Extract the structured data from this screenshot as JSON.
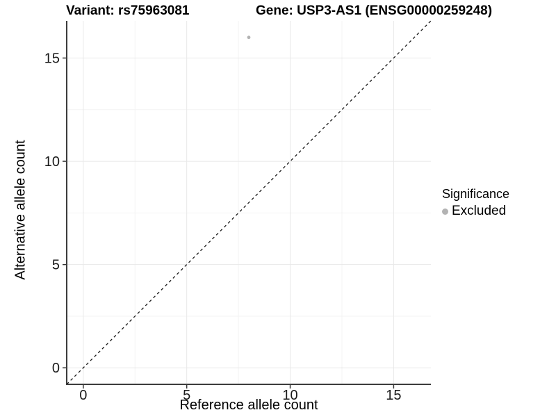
{
  "chart_data": {
    "type": "scatter",
    "title_left": "Variant: rs75963081",
    "title_right": "Gene: USP3-AS1 (ENSG00000259248)",
    "xlabel": "Reference allele count",
    "ylabel": "Alternative allele count",
    "xlim": [
      -0.8,
      16.8
    ],
    "ylim": [
      -0.8,
      16.8
    ],
    "x_ticks": [
      0,
      5,
      10,
      15
    ],
    "y_ticks": [
      0,
      5,
      10,
      15
    ],
    "x_minor_ticks": [
      2.5,
      7.5,
      12.5
    ],
    "y_minor_ticks": [
      2.5,
      7.5,
      12.5
    ],
    "grid": true,
    "legend_position": "right",
    "legend_title": "Significance",
    "series": [
      {
        "name": "Excluded",
        "color": "#b3b3b3",
        "points": [
          {
            "x": 8,
            "y": 16
          }
        ]
      }
    ],
    "reference_line": {
      "type": "identity",
      "style": "dashed",
      "from": [
        -0.8,
        -0.8
      ],
      "to": [
        16.8,
        16.8
      ]
    }
  },
  "colors": {
    "background": "#ffffff",
    "grid_major": "#e8e8e8",
    "grid_minor": "#f3f3f3",
    "axis_line": "#3c3c3c",
    "tick_mark": "#333333",
    "tick_label": "#1a1a1a",
    "title": "#000000",
    "point": "#b3b3b3",
    "reference_line": "#1a1a1a"
  }
}
